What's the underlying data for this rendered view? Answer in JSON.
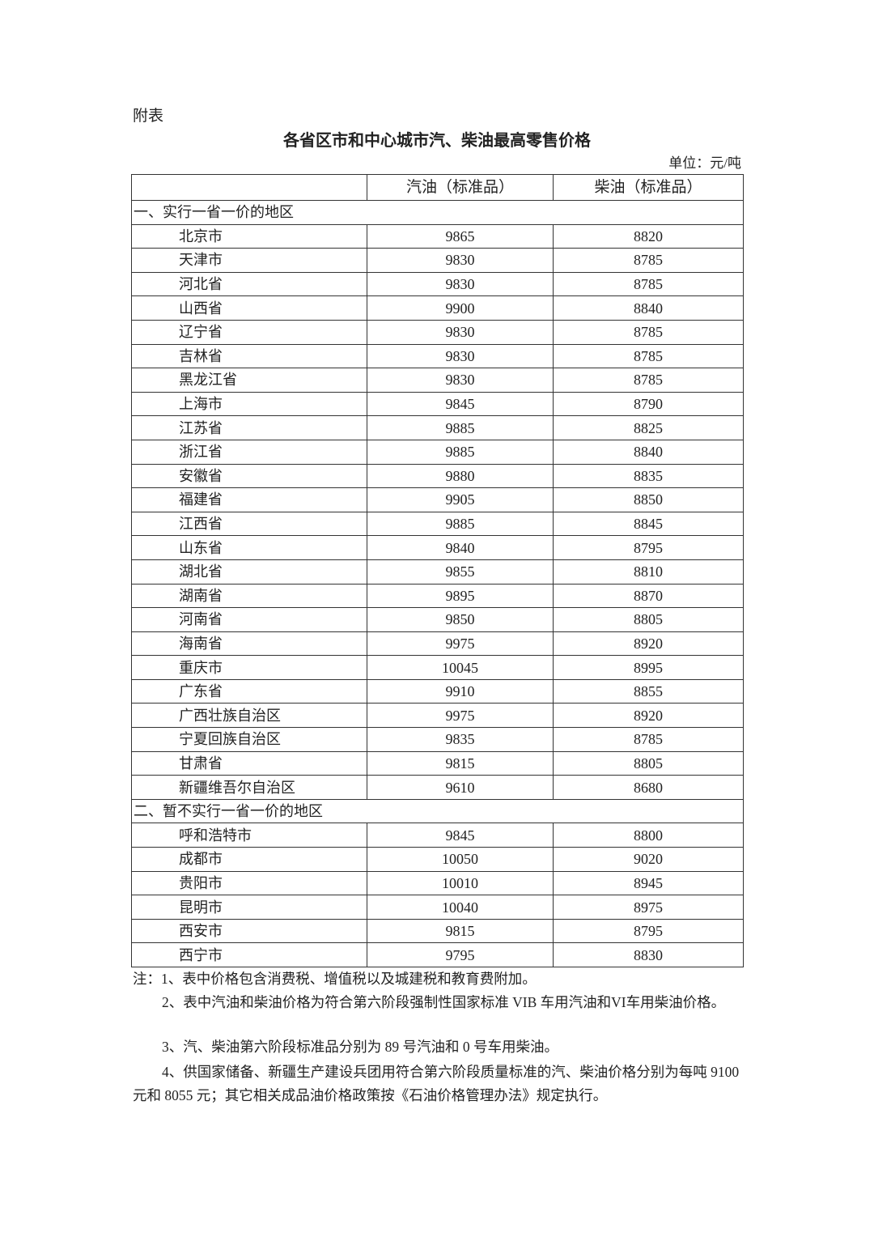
{
  "appendix_label": "附表",
  "title": "各省区市和中心城市汽、柴油最高零售价格",
  "unit": "单位：元/吨",
  "table": {
    "headers": [
      "",
      "汽油（标准品）",
      "柴油（标准品）"
    ],
    "sections": [
      {
        "label": "一、实行一省一价的地区",
        "rows": [
          [
            "北京市",
            "9865",
            "8820"
          ],
          [
            "天津市",
            "9830",
            "8785"
          ],
          [
            "河北省",
            "9830",
            "8785"
          ],
          [
            "山西省",
            "9900",
            "8840"
          ],
          [
            "辽宁省",
            "9830",
            "8785"
          ],
          [
            "吉林省",
            "9830",
            "8785"
          ],
          [
            "黑龙江省",
            "9830",
            "8785"
          ],
          [
            "上海市",
            "9845",
            "8790"
          ],
          [
            "江苏省",
            "9885",
            "8825"
          ],
          [
            "浙江省",
            "9885",
            "8840"
          ],
          [
            "安徽省",
            "9880",
            "8835"
          ],
          [
            "福建省",
            "9905",
            "8850"
          ],
          [
            "江西省",
            "9885",
            "8845"
          ],
          [
            "山东省",
            "9840",
            "8795"
          ],
          [
            "湖北省",
            "9855",
            "8810"
          ],
          [
            "湖南省",
            "9895",
            "8870"
          ],
          [
            "河南省",
            "9850",
            "8805"
          ],
          [
            "海南省",
            "9975",
            "8920"
          ],
          [
            "重庆市",
            "10045",
            "8995"
          ],
          [
            "广东省",
            "9910",
            "8855"
          ],
          [
            "广西壮族自治区",
            "9975",
            "8920"
          ],
          [
            "宁夏回族自治区",
            "9835",
            "8785"
          ],
          [
            "甘肃省",
            "9815",
            "8805"
          ],
          [
            "新疆维吾尔自治区",
            "9610",
            "8680"
          ]
        ]
      },
      {
        "label": "二、暂不实行一省一价的地区",
        "rows": [
          [
            "呼和浩特市",
            "9845",
            "8800"
          ],
          [
            "成都市",
            "10050",
            "9020"
          ],
          [
            "贵阳市",
            "10010",
            "8945"
          ],
          [
            "昆明市",
            "10040",
            "8975"
          ],
          [
            "西安市",
            "9815",
            "8795"
          ],
          [
            "西宁市",
            "9795",
            "8830"
          ]
        ]
      }
    ]
  },
  "notes": {
    "n1": "注：1、表中价格包含消费税、增值税以及城建税和教育费附加。",
    "n2": "2、表中汽油和柴油价格为符合第六阶段强制性国家标准 VIB 车用汽油和VI车用柴油价格。",
    "n3": "3、汽、柴油第六阶段标准品分别为 89 号汽油和 0 号车用柴油。",
    "n4": "4、供国家储备、新疆生产建设兵团用符合第六阶段质量标准的汽、柴油价格分别为每吨 9100 元和 8055 元；其它相关成品油价格政策按《石油价格管理办法》规定执行。"
  }
}
